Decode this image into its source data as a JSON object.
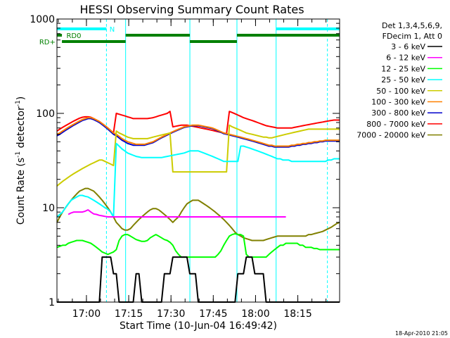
{
  "chart_data": {
    "type": "line",
    "title": "HESSI Observing Summary Count Rates",
    "xlabel": "Start Time (10-Jun-04 16:49:42)",
    "ylabel": "Count Rate (s⁻¹ detector⁻¹)",
    "ylabel_parts": {
      "base": "Count Rate (s",
      "exp1": "-1",
      "mid": " detector",
      "exp2": "-1",
      "end": ")"
    },
    "yscale": "log",
    "ylim": [
      1,
      1000
    ],
    "xlim": [
      -0.163,
      100.13
    ],
    "x_unit": "minutes after 16:49:42",
    "x_ticks": [
      {
        "label": "17:00",
        "x": 10.3
      },
      {
        "label": "17:15",
        "x": 25.3
      },
      {
        "label": "17:30",
        "x": 40.3
      },
      {
        "label": "17:45",
        "x": 55.3
      },
      {
        "label": "18:00",
        "x": 70.3
      },
      {
        "label": "18:15",
        "x": 85.3
      }
    ],
    "y_ticks": [
      {
        "label": "1",
        "v": 1
      },
      {
        "label": "10",
        "v": 10
      },
      {
        "label": "100",
        "v": 100
      },
      {
        "label": "1000",
        "v": 1000
      }
    ],
    "legend_header": [
      "Det 1,3,4,5,6,9,",
      "FDecim 1, Att 0"
    ],
    "legend_position": "right",
    "series": [
      {
        "name": "3 - 6 keV",
        "color": "#000000",
        "y": [
          1,
          1,
          1,
          1,
          1,
          1,
          1,
          1,
          1,
          1,
          1,
          1,
          1,
          1,
          1,
          1,
          3,
          3,
          3,
          3,
          2,
          2,
          1,
          1,
          1,
          1,
          1,
          1,
          2,
          2,
          1,
          1,
          1,
          1,
          1,
          1,
          1,
          1,
          2,
          2,
          2,
          3,
          3,
          3,
          3,
          3,
          3,
          2,
          2,
          2,
          1,
          1,
          1,
          1,
          1,
          1,
          1,
          1,
          1,
          1,
          1,
          1,
          1,
          1,
          2,
          2,
          2,
          3,
          3,
          3,
          2,
          2,
          2,
          2,
          1,
          1,
          1,
          1,
          1,
          1,
          1,
          1,
          1,
          1,
          1,
          1,
          1,
          1,
          1,
          1,
          1,
          1,
          1,
          1,
          1,
          1,
          1,
          1,
          1,
          1,
          1
        ]
      },
      {
        "name": "6 - 12 keV",
        "color": "#ff00ff",
        "y": [
          null,
          null,
          null,
          null,
          8.5,
          8.8,
          9,
          9,
          9,
          9,
          9.2,
          9.5,
          9,
          8.6,
          8.5,
          8.3,
          8.2,
          8.1,
          8,
          8,
          8,
          8,
          8,
          8,
          8,
          8,
          8,
          8,
          8,
          8,
          8,
          8,
          8,
          8,
          8,
          8,
          8,
          8,
          8,
          8,
          8,
          8,
          8,
          8,
          8,
          8,
          8,
          8,
          8,
          8,
          8,
          8,
          8,
          8,
          8,
          8,
          8,
          8,
          8,
          8,
          8,
          8,
          8,
          8,
          8,
          8,
          8,
          8,
          8,
          8,
          8,
          8,
          8,
          8,
          8,
          8,
          8,
          8,
          8,
          8,
          8,
          8,
          null,
          null,
          null,
          null,
          null,
          null,
          null,
          null,
          null,
          null,
          null,
          null,
          null,
          null,
          null,
          null,
          null,
          null,
          null
        ]
      },
      {
        "name": "12 - 25 keV",
        "color": "#00ff00",
        "y": [
          3.8,
          3.9,
          4,
          4,
          4.2,
          4.3,
          4.4,
          4.5,
          4.5,
          4.5,
          4.4,
          4.3,
          4.2,
          4,
          3.8,
          3.6,
          3.4,
          3.3,
          3.2,
          3.3,
          3.4,
          3.6,
          4.5,
          5,
          5.2,
          5.2,
          5,
          4.8,
          4.6,
          4.5,
          4.4,
          4.4,
          4.5,
          4.8,
          5,
          5.2,
          5,
          4.8,
          4.6,
          4.5,
          4.3,
          4,
          3.5,
          3.2,
          3,
          3,
          3,
          3,
          3,
          3,
          3,
          3,
          3,
          3,
          3,
          3,
          3,
          3.2,
          3.5,
          4,
          4.5,
          5,
          5.2,
          5.3,
          5.2,
          5.2,
          5,
          3.2,
          3,
          3,
          3,
          3,
          3,
          3,
          3,
          3.2,
          3.4,
          3.6,
          3.8,
          4,
          4,
          4.2,
          4.2,
          4.2,
          4.2,
          4.2,
          4,
          4,
          3.8,
          3.8,
          3.8,
          3.7,
          3.7,
          3.6,
          3.6,
          3.6,
          3.6,
          3.6,
          3.6,
          3.6,
          3.6
        ]
      },
      {
        "name": "25 - 50 keV",
        "color": "#00ffff",
        "y": [
          8,
          8.5,
          9,
          10,
          11,
          12,
          12.5,
          13,
          13.5,
          13.5,
          13.2,
          13,
          12.5,
          12,
          11.5,
          11,
          10.5,
          10,
          9.6,
          9,
          8,
          48,
          45,
          42,
          40,
          38,
          37,
          36,
          35,
          34.5,
          34,
          34,
          34,
          34,
          34,
          34,
          34,
          34,
          34.5,
          35,
          35.5,
          36,
          36.5,
          37,
          37.5,
          38,
          39,
          40,
          40,
          40,
          40,
          39,
          38,
          37,
          36,
          35,
          34,
          33,
          32,
          31,
          31,
          31,
          31,
          31,
          31,
          45,
          45,
          44,
          43,
          42,
          41,
          40,
          39,
          38,
          37,
          36,
          35,
          34,
          33,
          33,
          32,
          32,
          32,
          31,
          31,
          31,
          31,
          31,
          31,
          31,
          31,
          31,
          31,
          31,
          31,
          31,
          32,
          32,
          33,
          33,
          33
        ]
      },
      {
        "name": "50 - 100 keV",
        "color": "#cccc00",
        "y": [
          17,
          18,
          19,
          20,
          21,
          22,
          23,
          24,
          25,
          26,
          27,
          28,
          29,
          30,
          31,
          32,
          32,
          31,
          30,
          29,
          28,
          65,
          62,
          60,
          58,
          56,
          55,
          54,
          54,
          54,
          54,
          54,
          54,
          55,
          56,
          57,
          58,
          59,
          60,
          61,
          62,
          24,
          24,
          24,
          24,
          24,
          24,
          24,
          24,
          24,
          24,
          24,
          24,
          24,
          24,
          24,
          24,
          24,
          24,
          24,
          24,
          75,
          72,
          70,
          68,
          66,
          64,
          62,
          61,
          60,
          59,
          58,
          57,
          56,
          56,
          55,
          55,
          56,
          57,
          58,
          59,
          60,
          61,
          62,
          63,
          64,
          65,
          66,
          67,
          68,
          68,
          68,
          68,
          68,
          68,
          68,
          68,
          68,
          68,
          68,
          68
        ]
      },
      {
        "name": "100 - 300 keV",
        "color": "#ff8000",
        "y": [
          60,
          62,
          65,
          68,
          71,
          74,
          77,
          80,
          83,
          86,
          88,
          90,
          90,
          88,
          85,
          82,
          78,
          74,
          70,
          66,
          62,
          60,
          57,
          54,
          52,
          50,
          49,
          48,
          47,
          47,
          47,
          47,
          48,
          49,
          50,
          52,
          54,
          56,
          58,
          60,
          62,
          64,
          66,
          68,
          70,
          72,
          73,
          74,
          75,
          75,
          75,
          74,
          73,
          72,
          71,
          70,
          68,
          66,
          64,
          62,
          61,
          60,
          59,
          58,
          57,
          56,
          55,
          54,
          53,
          52,
          51,
          50,
          49,
          48,
          47,
          46,
          46,
          45,
          45,
          45,
          45,
          45,
          45,
          46,
          46,
          47,
          47,
          48,
          48,
          49,
          49,
          50,
          50,
          51,
          51,
          52,
          52,
          52,
          52,
          52,
          52
        ]
      },
      {
        "name": "300 - 800 keV",
        "color": "#0000cc",
        "y": [
          58,
          60,
          63,
          66,
          69,
          72,
          75,
          78,
          81,
          84,
          86,
          88,
          88,
          86,
          83,
          80,
          76,
          72,
          68,
          64,
          60,
          58,
          55,
          52,
          50,
          48,
          47,
          46,
          46,
          46,
          46,
          46,
          47,
          48,
          49,
          51,
          53,
          55,
          57,
          59,
          61,
          63,
          65,
          67,
          69,
          71,
          72,
          73,
          74,
          74,
          74,
          73,
          72,
          71,
          70,
          69,
          67,
          65,
          63,
          61,
          60,
          59,
          58,
          57,
          56,
          55,
          54,
          53,
          52,
          51,
          50,
          49,
          48,
          47,
          46,
          45,
          45,
          44,
          44,
          44,
          44,
          44,
          44,
          45,
          45,
          46,
          46,
          47,
          47,
          48,
          48,
          49,
          49,
          50,
          50,
          51,
          51,
          51,
          51,
          51,
          51
        ]
      },
      {
        "name": "800 - 7000 keV",
        "color": "#ff0000",
        "y": [
          65,
          68,
          71,
          74,
          77,
          80,
          83,
          86,
          89,
          91,
          92,
          92,
          91,
          88,
          85,
          82,
          78,
          74,
          70,
          66,
          62,
          100,
          98,
          96,
          94,
          92,
          90,
          88,
          88,
          88,
          88,
          88,
          88,
          89,
          90,
          92,
          94,
          96,
          98,
          100,
          105,
          72,
          73,
          74,
          75,
          75,
          75,
          74,
          73,
          72,
          71,
          70,
          69,
          68,
          67,
          66,
          65,
          64,
          63,
          62,
          61,
          105,
          102,
          99,
          96,
          93,
          90,
          88,
          86,
          84,
          82,
          80,
          78,
          76,
          74,
          73,
          72,
          71,
          70,
          70,
          70,
          70,
          70,
          70,
          71,
          72,
          73,
          74,
          75,
          76,
          77,
          78,
          79,
          80,
          81,
          82,
          83,
          84,
          85,
          85,
          85
        ]
      },
      {
        "name": "7000 - 20000 keV",
        "color": "#808000",
        "y": [
          7,
          8,
          9,
          10,
          11,
          12,
          13,
          14,
          15,
          15.5,
          16,
          16,
          15.5,
          15,
          14,
          13,
          12,
          11,
          10,
          9,
          8,
          7,
          6.5,
          6,
          5.8,
          5.8,
          6,
          6.5,
          7,
          7.5,
          8,
          8.5,
          9,
          9.5,
          9.8,
          9.8,
          9.5,
          9,
          8.5,
          8,
          7.5,
          7,
          7.5,
          8,
          9,
          10,
          11,
          11.5,
          12,
          12,
          12,
          11.5,
          11,
          10.5,
          10,
          9.5,
          9,
          8.5,
          8,
          7.5,
          7,
          6.5,
          6,
          5.5,
          5.2,
          5,
          4.8,
          4.7,
          4.6,
          4.5,
          4.5,
          4.5,
          4.5,
          4.5,
          4.6,
          4.7,
          4.8,
          4.9,
          5,
          5,
          5,
          5,
          5,
          5,
          5,
          5,
          5,
          5,
          5,
          5.2,
          5.2,
          5.3,
          5.4,
          5.5,
          5.6,
          5.8,
          6,
          6.2,
          6.5,
          6.8,
          7
        ]
      }
    ],
    "intervals": [
      {
        "label": "N",
        "color": "#00ffff",
        "row": 0,
        "segments": [
          [
            -0.163,
            17.4
          ],
          [
            77.6,
            100.13
          ]
        ],
        "label_x": 18.5
      },
      {
        "label": "RD0",
        "color": "#008000",
        "row": 1,
        "segments": [
          [
            -0.163,
            1.6
          ],
          [
            24.2,
            47.0
          ],
          [
            63.7,
            100.13
          ]
        ],
        "label_x": 3.2
      },
      {
        "label": "RD+",
        "color": "#008000",
        "row": 2,
        "segments": [
          [
            1.6,
            24.2
          ],
          [
            47.0,
            63.7
          ]
        ],
        "label_x": -0.7
      }
    ],
    "vlines_solid": [
      24.2,
      47.0,
      63.7,
      77.6
    ],
    "vlines_dashed": [
      17.4,
      95.8
    ],
    "grid": false
  },
  "timestamp": "18-Apr-2010 21:05"
}
